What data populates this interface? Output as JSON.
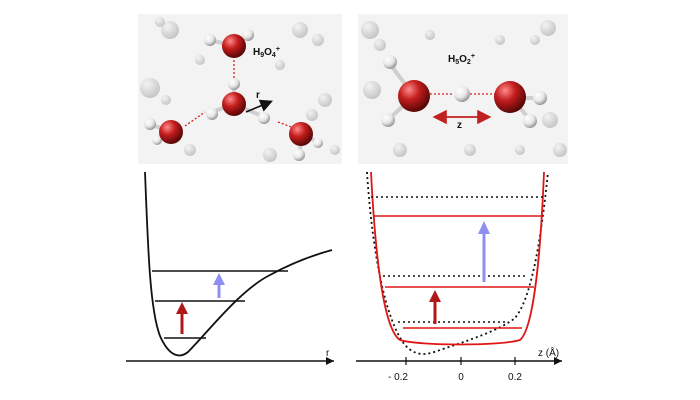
{
  "panels": {
    "top_left": {
      "ion_label_base": "H",
      "ion_sub1": "9",
      "ion_mid": "O",
      "ion_sub2": "4",
      "ion_sup": "+",
      "coord_label": "r"
    },
    "top_right": {
      "ion_label_base": "H",
      "ion_sub1": "5",
      "ion_mid": "O",
      "ion_sub2": "2",
      "ion_sup": "+",
      "coord_label": "z"
    },
    "bottom_left": {
      "axis_label": "r"
    },
    "bottom_right": {
      "axis_label": "z (Å)",
      "ticks": [
        "- 0.2",
        "0",
        "0.2"
      ]
    }
  },
  "colors": {
    "oxygen": "#c41e1e",
    "hydrogen": "#f2f2f2",
    "bond_dotted": "#d42020",
    "curve_black": "#111111",
    "curve_red": "#e01515",
    "arrow_red": "#b01818",
    "arrow_blue": "#8f8ff0"
  }
}
